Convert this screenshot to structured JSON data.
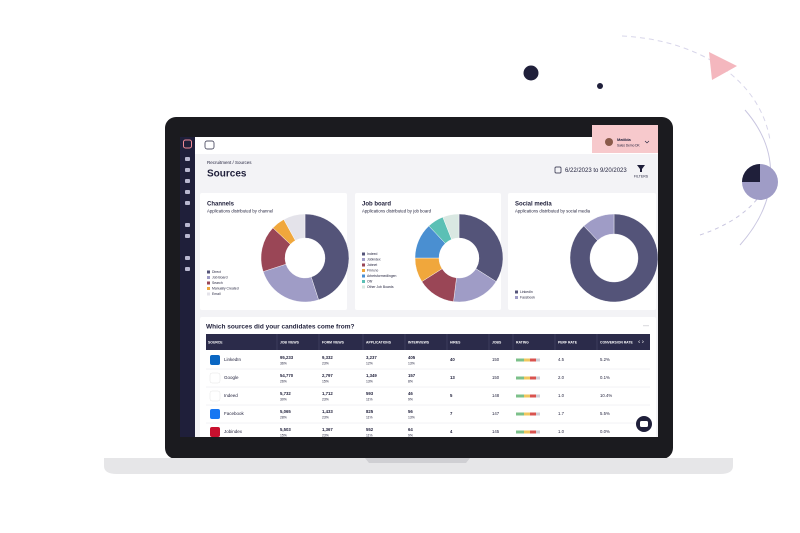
{
  "header": {
    "user_name": "Matilda",
    "user_org": "Sales Demo DK",
    "breadcrumb": "Recruitment / Sources",
    "title": "Sources",
    "date_range": "6/22/2023 to 9/20/2023",
    "filters": "FILTERS"
  },
  "chart_data": [
    {
      "type": "donut",
      "title": "Channels",
      "subtitle": "Applications distributed by channel",
      "categories": [
        "Direct",
        "Job Board",
        "Search",
        "Manually Created",
        "Email"
      ],
      "values": [
        45,
        25,
        17,
        5,
        8
      ],
      "colors": [
        "#545479",
        "#9f9cc6",
        "#9a4656",
        "#f0a73c",
        "#e4e3ea"
      ]
    },
    {
      "type": "donut",
      "title": "Job board",
      "subtitle": "Applications distributed by job board",
      "categories": [
        "Indeed",
        "Jobindex",
        "Jobnet",
        "Finn.no",
        "Arbetsformedlingen",
        "Ofir",
        "Other Job Boards"
      ],
      "values": [
        34,
        18,
        14,
        9,
        13,
        6,
        6
      ],
      "colors": [
        "#545479",
        "#9f9cc6",
        "#9a4656",
        "#f0a73c",
        "#4a8fd1",
        "#5bc0b5",
        "#d9e8e2"
      ]
    },
    {
      "type": "donut",
      "title": "Social media",
      "subtitle": "Applications distributed by social media",
      "categories": [
        "LinkedIn",
        "Facebook"
      ],
      "values": [
        88,
        12
      ],
      "colors": [
        "#545479",
        "#9f9cc6"
      ]
    }
  ],
  "table": {
    "title": "Which sources did your candidates come from?",
    "columns": [
      "SOURCE",
      "JOB VIEWS",
      "FORM VIEWS",
      "APPLICATIONS",
      "INTERVIEWS",
      "HIRES",
      "JOBS",
      "RATING",
      "PERF RATE",
      "CONVERSION RATE"
    ],
    "rows": [
      [
        "LinkedIn",
        "95,233",
        "36%",
        "9,332",
        "23%",
        "3,237",
        "12%",
        "405",
        "13%",
        "40",
        "150",
        "4.5",
        "5.2%"
      ],
      [
        "Google",
        "54,770",
        "26%",
        "2,797",
        "15%",
        "1,349",
        "13%",
        "157",
        "8%",
        "13",
        "150",
        "2.0",
        "0.1%"
      ],
      [
        "Indeed",
        "5,732",
        "30%",
        "1,712",
        "23%",
        "593",
        "11%",
        "46",
        "9%",
        "5",
        "148",
        "1.0",
        "10.4%"
      ],
      [
        "Facebook",
        "5,065",
        "28%",
        "1,433",
        "23%",
        "825",
        "11%",
        "56",
        "13%",
        "7",
        "147",
        "1.7",
        "5.5%"
      ],
      [
        "Jobindex",
        "5,503",
        "15%",
        "1,367",
        "23%",
        "552",
        "11%",
        "64",
        "9%",
        "4",
        "145",
        "1.0",
        "0.0%"
      ]
    ]
  }
}
